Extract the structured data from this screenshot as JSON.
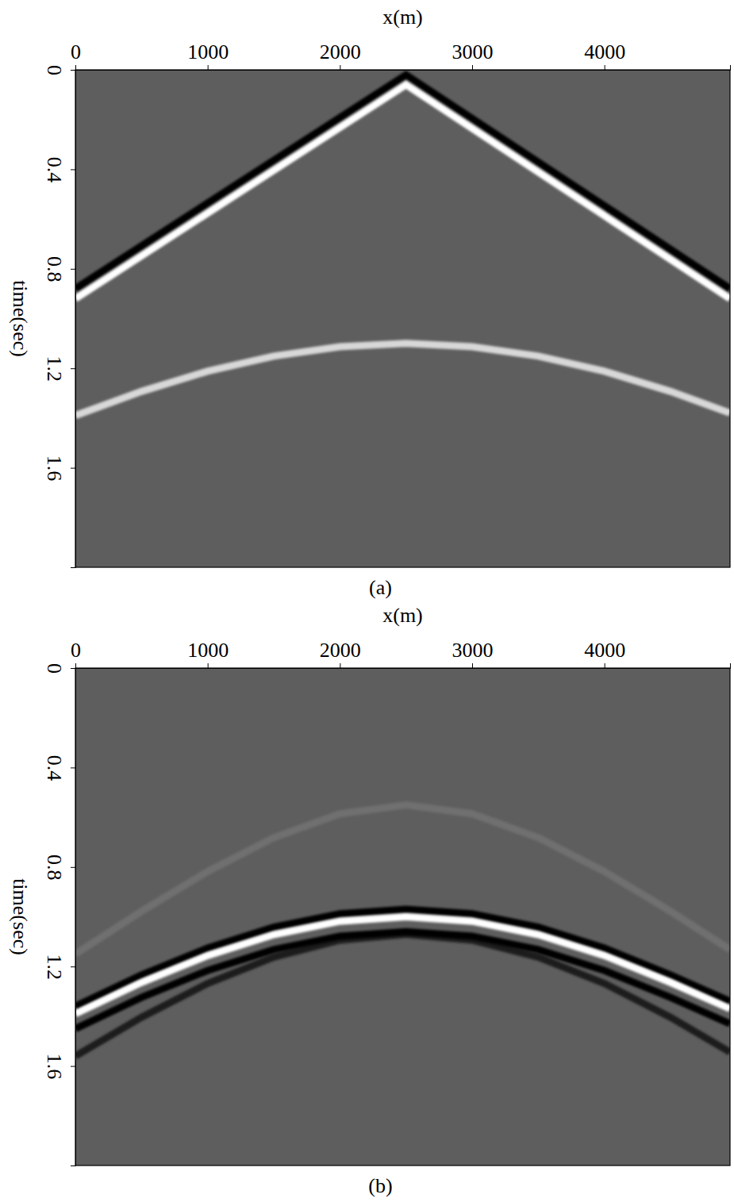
{
  "chart_data": [
    {
      "type": "line",
      "title": "(a)",
      "x_label": "x(m)",
      "y_label": "time(sec)",
      "xlim": [
        0,
        4950
      ],
      "ylim": [
        0,
        2.0
      ],
      "xticks": [
        0,
        1000,
        2000,
        3000,
        4000
      ],
      "yticks": [
        0,
        0.4,
        0.8,
        1.2,
        1.6
      ],
      "series": [
        {
          "color": "#050505",
          "x": [
            0,
            2500,
            4950
          ],
          "values": [
            0.88,
            0.02,
            0.88
          ]
        },
        {
          "color": "#ffffff",
          "x": [
            0,
            2500,
            4950
          ],
          "values": [
            0.92,
            0.06,
            0.92
          ]
        },
        {
          "color": "#d8d8d8",
          "x": [
            0,
            500,
            1000,
            1500,
            2000,
            2500,
            3000,
            3500,
            4000,
            4500,
            4950
          ],
          "values": [
            1.39,
            1.293,
            1.212,
            1.151,
            1.113,
            1.1,
            1.113,
            1.151,
            1.212,
            1.293,
            1.38
          ]
        }
      ]
    },
    {
      "type": "line",
      "title": "(b)",
      "x_label": "x(m)",
      "y_label": "time(sec)",
      "xlim": [
        0,
        4950
      ],
      "ylim": [
        0,
        2.0
      ],
      "xticks": [
        0,
        1000,
        2000,
        3000,
        4000
      ],
      "yticks": [
        0,
        0.4,
        0.8,
        1.2,
        1.6
      ],
      "series": [
        {
          "color": "#707070",
          "x": [
            0,
            500,
            1000,
            1500,
            2000,
            2500,
            3000,
            3500,
            4000,
            4500,
            4950
          ],
          "values": [
            1.15,
            0.978,
            0.818,
            0.682,
            0.586,
            0.55,
            0.586,
            0.682,
            0.818,
            0.978,
            1.132
          ]
        },
        {
          "color": "#1e1e1e",
          "x": [
            0,
            500,
            1000,
            1500,
            2000,
            2500,
            3000,
            3500,
            4000,
            4500,
            4950
          ],
          "values": [
            1.56,
            1.404,
            1.268,
            1.162,
            1.094,
            1.07,
            1.094,
            1.162,
            1.268,
            1.404,
            1.544
          ]
        },
        {
          "color": "#050505",
          "x": [
            0,
            500,
            1000,
            1500,
            2000,
            2500,
            3000,
            3500,
            4000,
            4500,
            4950
          ],
          "values": [
            1.45,
            1.324,
            1.216,
            1.132,
            1.078,
            1.06,
            1.078,
            1.132,
            1.216,
            1.324,
            1.43
          ]
        },
        {
          "color": "#050505",
          "x": [
            0,
            500,
            1000,
            1500,
            2000,
            2500,
            3000,
            3500,
            4000,
            4500,
            4950
          ],
          "values": [
            1.36,
            1.234,
            1.126,
            1.042,
            0.988,
            0.97,
            0.988,
            1.042,
            1.126,
            1.234,
            1.34
          ]
        },
        {
          "color": "#ffffff",
          "x": [
            0,
            500,
            1000,
            1500,
            2000,
            2500,
            3000,
            3500,
            4000,
            4500,
            4950
          ],
          "values": [
            1.39,
            1.264,
            1.156,
            1.072,
            1.018,
            1.0,
            1.018,
            1.072,
            1.156,
            1.264,
            1.37
          ]
        }
      ]
    }
  ]
}
